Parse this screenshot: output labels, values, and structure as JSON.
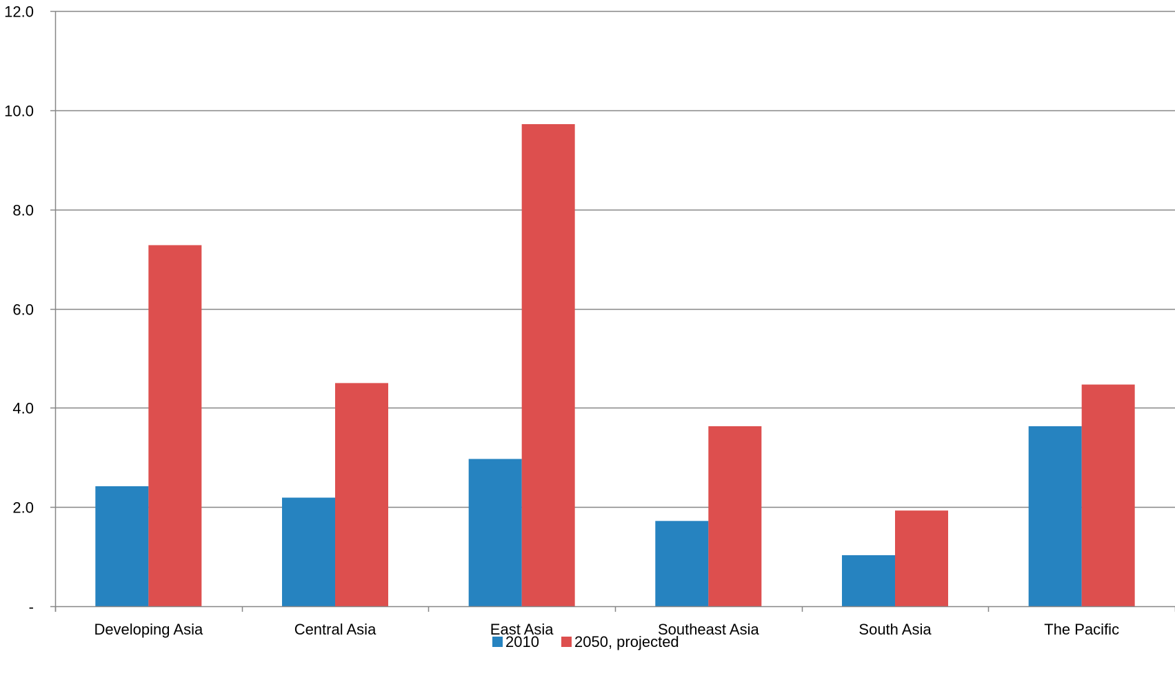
{
  "chart_data": {
    "type": "bar",
    "title": "",
    "xlabel": "",
    "ylabel": "",
    "categories": [
      "Developing Asia",
      "Central Asia",
      "East Asia",
      "Southeast Asia",
      "South Asia",
      "The Pacific"
    ],
    "series": [
      {
        "name": "2010",
        "color": "#2683c0",
        "values": [
          2.42,
          2.19,
          2.97,
          1.72,
          1.03,
          3.63
        ]
      },
      {
        "name": "2050, projected",
        "color": "#dd4f4e",
        "values": [
          7.28,
          4.5,
          9.72,
          3.63,
          1.93,
          4.47
        ]
      }
    ],
    "ylim": [
      0,
      12
    ],
    "yticks": [
      0,
      2,
      4,
      6,
      8,
      10,
      12
    ],
    "ytick_labels": [
      "-",
      "2.0",
      "4.0",
      "6.0",
      "8.0",
      "10.0",
      "12.0"
    ],
    "grid": true,
    "legend_position": "bottom-center",
    "colors": {
      "axis": "#868686",
      "grid": "#868686"
    }
  }
}
